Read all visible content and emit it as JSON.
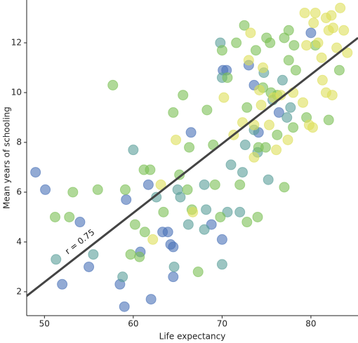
{
  "chart_data": {
    "type": "scatter",
    "xlabel": "Life expectancy",
    "ylabel": "Mean years of schooling",
    "xlim": [
      48,
      85.3
    ],
    "ylim": [
      1.04,
      13.72
    ],
    "xticks": [
      50,
      60,
      70,
      80
    ],
    "yticks": [
      2,
      4,
      6,
      8,
      10,
      12
    ],
    "grid": false,
    "marker_opacity": 0.6,
    "series": [
      {
        "color": "#4a72b8",
        "x": [
          49,
          50.1,
          52,
          54,
          55,
          59,
          59.2,
          58.5,
          60.8,
          62,
          61.7,
          63.3,
          63.9,
          64.2,
          64.5,
          64.5,
          66.5,
          68.8,
          70,
          70.1,
          70.5,
          73,
          73.6,
          80,
          74.1,
          76.4
        ],
        "values": [
          6.8,
          6.1,
          2.3,
          4.8,
          3,
          1.4,
          5.7,
          2.3,
          3.6,
          1.7,
          6.3,
          4.4,
          4.4,
          3.9,
          3.8,
          2.6,
          8.4,
          4.7,
          4.1,
          10.9,
          10.9,
          11.1,
          10.3,
          12.4,
          8.4,
          9.2
        ]
      },
      {
        "color": "#5a9e9a",
        "x": [
          60,
          51.3,
          55.5,
          58.8,
          62.6,
          65,
          65.3,
          64.6,
          66.2,
          68,
          68,
          68.2,
          70,
          70.6,
          72.3,
          72,
          75.2,
          71,
          72.6,
          73.6,
          74,
          77.7,
          75.7,
          77.3,
          69.8,
          70,
          74.7,
          76.8
        ],
        "values": [
          7.7,
          3.3,
          3.5,
          2.6,
          5.8,
          6.1,
          5.8,
          3.0,
          4.7,
          6.3,
          4.5,
          5.3,
          3.1,
          5.2,
          6.8,
          5.2,
          6.5,
          7.1,
          7.9,
          8.5,
          7.6,
          9.4,
          9.7,
          9.0,
          12.0,
          10.6,
          10.8,
          10.5
        ]
      },
      {
        "color": "#7cbf55",
        "x": [
          57.7,
          51.2,
          52.8,
          53.2,
          56,
          59.1,
          60.2,
          61.2,
          61.9,
          59.7,
          60.7,
          61.3,
          63.4,
          64.5,
          65.2,
          65.6,
          66.3,
          66.6,
          67.3,
          68.3,
          69,
          69.8,
          70,
          70.6,
          71.6,
          72.5,
          72.8,
          73.8,
          74.1,
          74.6,
          75,
          75.4,
          75.5,
          76.2,
          77,
          77.5,
          77.5,
          78.1,
          77,
          78,
          78.3,
          79.5,
          80.5,
          82,
          83.2,
          76.2,
          74.9,
          72.8,
          74,
          66.1,
          69.2,
          72
        ],
        "values": [
          10.3,
          5,
          5,
          6,
          6.1,
          6.1,
          4.7,
          6.9,
          6.9,
          3.5,
          3.4,
          4.4,
          5.2,
          9.2,
          6.7,
          9.9,
          7.8,
          5.3,
          2.8,
          9.3,
          7.9,
          5,
          11.7,
          10.6,
          12.0,
          12.7,
          9.4,
          11.7,
          7.8,
          10.2,
          12.2,
          12.0,
          10.0,
          9.9,
          12.2,
          11.3,
          12.5,
          11.9,
          6.2,
          8.6,
          10.9,
          9.0,
          11.9,
          8.9,
          10.9,
          8.3,
          7.8,
          4.8,
          5,
          6.1,
          6.3,
          6.3
        ]
      },
      {
        "color": "#dde05a",
        "x": [
          64.8,
          62.2,
          63.1,
          66.7,
          70.2,
          71.3,
          72.3,
          73,
          73.2,
          73.6,
          74.2,
          74.6,
          75.3,
          75.8,
          76.1,
          76.6,
          77.4,
          78,
          79.1,
          79.5,
          79.3,
          80.3,
          80.5,
          80.8,
          81.2,
          81.3,
          81.7,
          82,
          82.3,
          82.5,
          82.9,
          83.3,
          83.7,
          84.1,
          82.4,
          81.7,
          80.2,
          79.8,
          74.4,
          73.6
        ],
        "values": [
          8.1,
          4.1,
          6.3,
          5.2,
          9.8,
          8.3,
          8.8,
          11.3,
          12.4,
          8.7,
          10.1,
          11.0,
          8.7,
          9.8,
          7.7,
          9.9,
          8.1,
          10.0,
          9.6,
          11.9,
          13.2,
          12.8,
          13.2,
          12.0,
          11.4,
          10.5,
          10.0,
          12.5,
          13.1,
          12.6,
          11.8,
          13.4,
          12.5,
          11.6,
          9.9,
          13.0,
          8.6,
          8.7,
          9.5,
          7.4
        ]
      }
    ],
    "fit_line": {
      "color": "#444444",
      "x": [
        48,
        85.3
      ],
      "values": [
        1.83,
        12.2
      ]
    },
    "annotation": "r = 0.75"
  }
}
